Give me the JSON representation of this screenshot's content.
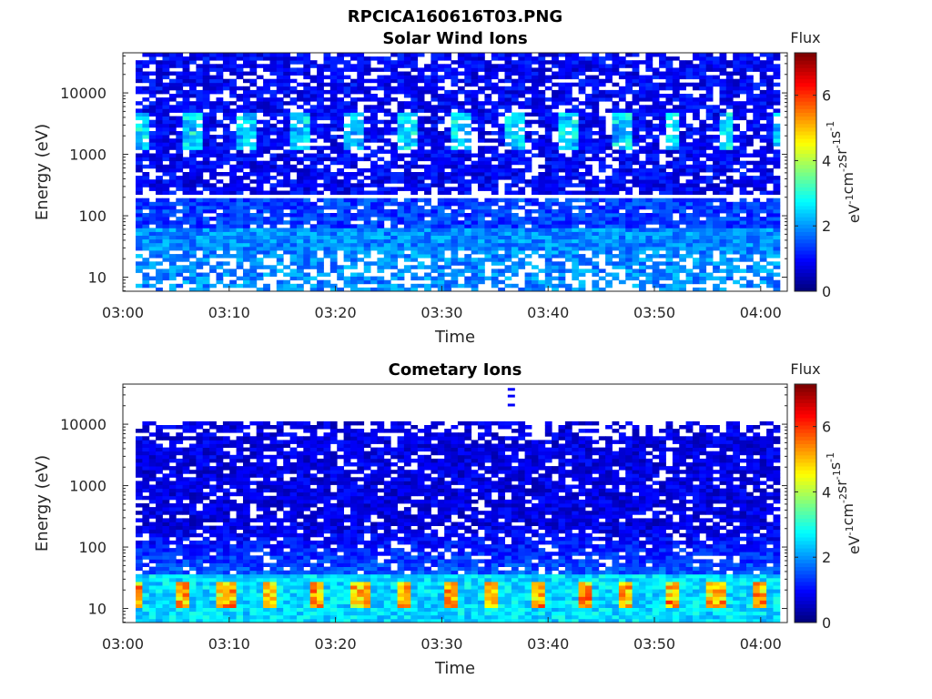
{
  "figure_title": "RPCICA160616T03.PNG",
  "chart_data": [
    {
      "type": "heatmap",
      "title": "Solar Wind Ions",
      "xlabel": "Time",
      "ylabel": "Energy (eV)",
      "x_ticks": [
        "03:00",
        "03:10",
        "03:20",
        "03:30",
        "03:40",
        "03:50",
        "04:00"
      ],
      "y_ticks": [
        "10",
        "100",
        "1000",
        "10000"
      ],
      "y_scale": "log",
      "colorbar": {
        "title": "Flux",
        "unit": "eV-1cm-2sr-1s-1",
        "ticks": [
          "0",
          "2",
          "4",
          "6"
        ],
        "range": [
          0,
          7.3
        ],
        "colormap": "jet"
      },
      "approx_features": {
        "time_range": [
          "03:01",
          "04:02"
        ],
        "low_energy_band_eV": [
          7,
          60
        ],
        "solar_wind_peaks_eV": [
          1500,
          3000
        ],
        "empty_line_eV": 200,
        "typical_flux_range": [
          0.5,
          2.5
        ]
      }
    },
    {
      "type": "heatmap",
      "title": "Cometary Ions",
      "xlabel": "Time",
      "ylabel": "Energy (eV)",
      "x_ticks": [
        "03:00",
        "03:10",
        "03:20",
        "03:30",
        "03:40",
        "03:50",
        "04:00"
      ],
      "y_ticks": [
        "10",
        "100",
        "1000",
        "10000"
      ],
      "y_scale": "log",
      "colorbar": {
        "title": "Flux",
        "unit": "eV-1cm-2sr-1s-1",
        "ticks": [
          "0",
          "2",
          "4",
          "6"
        ],
        "range": [
          0,
          7.3
        ],
        "colormap": "jet"
      },
      "approx_features": {
        "time_range": [
          "03:01",
          "04:02"
        ],
        "upper_energy_cutoff_eV": 10000,
        "low_energy_peak_eV": [
          8,
          30
        ],
        "peak_flux": 5.5,
        "typical_flux_range": [
          0.3,
          2.5
        ]
      }
    }
  ]
}
